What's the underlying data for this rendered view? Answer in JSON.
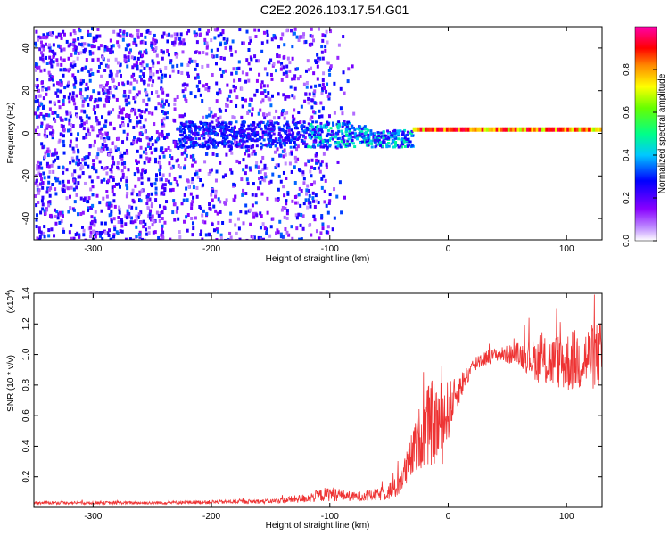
{
  "title": "C2E2.2026.103.17.54.G01",
  "chart_data": [
    {
      "type": "heatmap",
      "name": "spectrogram",
      "xlabel": "Height of straight line (km)",
      "ylabel": "Frequency (Hz)",
      "xlim": [
        -350,
        130
      ],
      "ylim": [
        -50,
        50
      ],
      "xticks": [
        -300,
        -200,
        -100,
        0,
        100
      ],
      "xtick_labels": [
        "-300",
        "-200",
        "-100",
        "0",
        "100"
      ],
      "yticks": [
        -40,
        -20,
        0,
        20,
        40
      ],
      "ytick_labels": [
        "-40",
        "-20",
        "0",
        "20",
        "40"
      ],
      "colorbar": {
        "label": "Normalized spectral amplitude",
        "range": [
          0,
          1
        ],
        "ticks": [
          0.0,
          0.2,
          0.4,
          0.6,
          0.8
        ],
        "tick_labels": [
          "0.0",
          "0.2",
          "0.4",
          "0.6",
          "0.8"
        ],
        "colors": [
          "#ffffff",
          "#8800ff",
          "#0000ff",
          "#00e0ff",
          "#00ff66",
          "#66ff00",
          "#ffff00",
          "#ff8800",
          "#ff0000",
          "#ff00aa"
        ]
      },
      "features": [
        {
          "description": "broadband scattered noise",
          "x_range": [
            -350,
            -100
          ],
          "freq_range": [
            -50,
            50
          ],
          "amplitude": 0.15
        },
        {
          "description": "narrow band around 0 Hz",
          "x_range": [
            -230,
            -30
          ],
          "freq_range": [
            -6,
            6
          ],
          "amplitude": 0.4
        },
        {
          "description": "steady tone",
          "x_range": [
            -30,
            130
          ],
          "freq_center": 2,
          "amplitude": 0.85
        }
      ]
    },
    {
      "type": "line",
      "name": "snr",
      "xlabel": "Height of straight line (km)",
      "ylabel": "SNR (10 * v/v)",
      "y_multiplier": "(x10",
      "y_multiplier_exp": "4",
      "y_multiplier_close": ")",
      "xlim": [
        -350,
        130
      ],
      "ylim": [
        0,
        1.4
      ],
      "xticks": [
        -300,
        -200,
        -100,
        0,
        100
      ],
      "xtick_labels": [
        "-300",
        "-200",
        "-100",
        "0",
        "100"
      ],
      "yticks": [
        0.2,
        0.4,
        0.6,
        0.8,
        1.0,
        1.2,
        1.4
      ],
      "ytick_labels": [
        "0.2",
        "0.4",
        "0.6",
        "0.8",
        "1.0",
        "1.2",
        "1.4"
      ],
      "color": "#ee3333",
      "series": [
        {
          "name": "SNR",
          "x": [
            -350,
            -300,
            -250,
            -200,
            -150,
            -120,
            -100,
            -80,
            -60,
            -45,
            -35,
            -25,
            -15,
            -5,
            5,
            15,
            25,
            40,
            60,
            80,
            100,
            120,
            130
          ],
          "y": [
            0.03,
            0.03,
            0.03,
            0.035,
            0.04,
            0.06,
            0.09,
            0.07,
            0.08,
            0.12,
            0.25,
            0.45,
            0.55,
            0.55,
            0.72,
            0.85,
            0.96,
            1.0,
            1.0,
            0.95,
            0.95,
            0.98,
            1.0
          ],
          "noise": [
            0.01,
            0.01,
            0.01,
            0.012,
            0.015,
            0.03,
            0.05,
            0.03,
            0.04,
            0.07,
            0.12,
            0.2,
            0.28,
            0.28,
            0.12,
            0.07,
            0.06,
            0.04,
            0.08,
            0.16,
            0.2,
            0.22,
            0.22
          ]
        }
      ]
    }
  ]
}
